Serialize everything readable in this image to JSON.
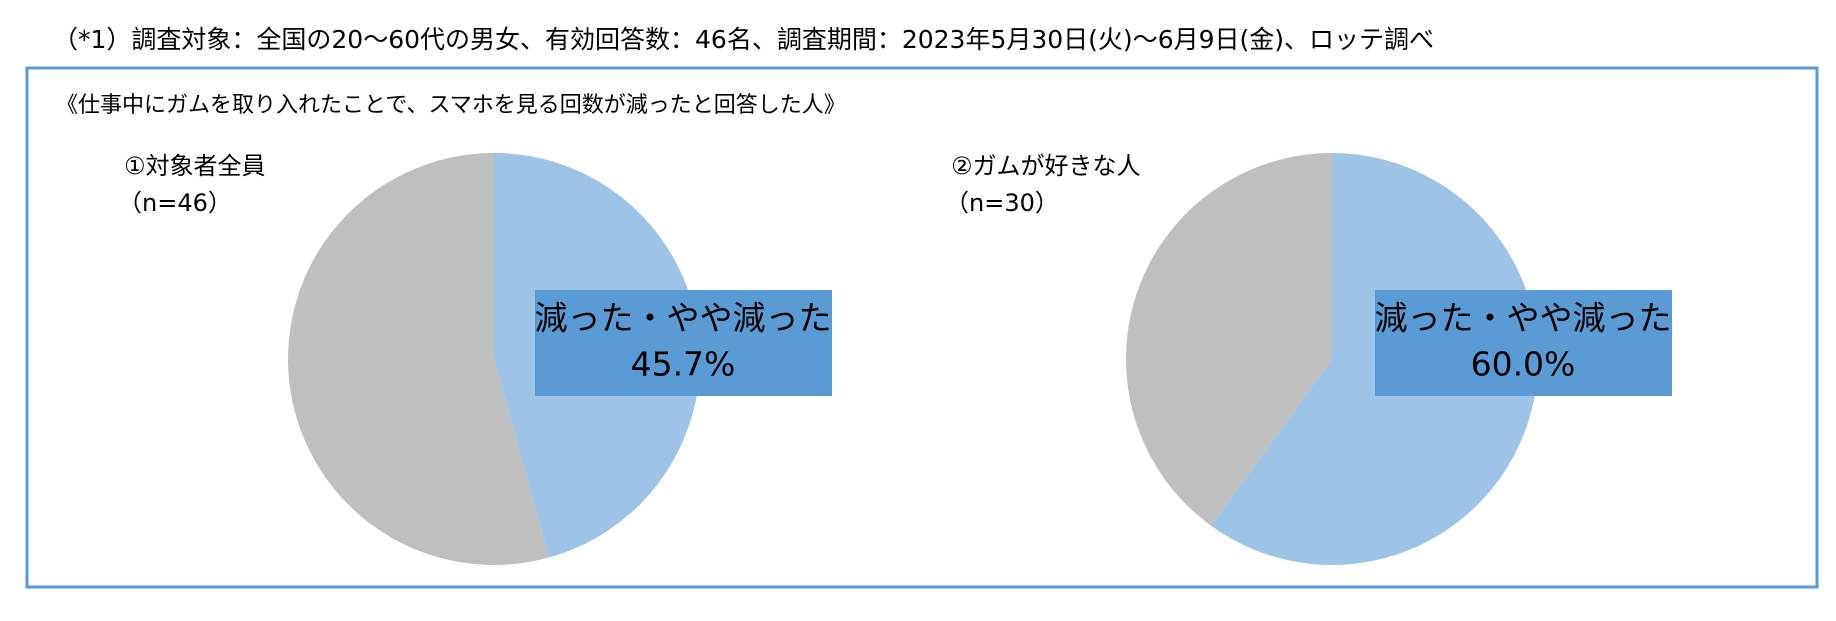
{
  "note": "（*1）調査対象：全国の20～60代の男女、有効回答数：46名、調査期間：2023年5月30日(火)～6月9日(金)、ロッテ調べ",
  "heading": "《仕事中にガムを取り入れたことで、スマホを見る回数が減ったと回答した人》",
  "chart_data": [
    {
      "type": "pie",
      "title": "①対象者全員",
      "subtitle": "（n=46）",
      "categories": [
        "減った・やや減った",
        null
      ],
      "values": [
        45.7,
        54.3
      ],
      "value_labels": [
        "45.7%",
        null
      ],
      "colors": [
        "#9dc3e6",
        "#bfbfbf"
      ]
    },
    {
      "type": "pie",
      "title": "②ガムが好きな人",
      "subtitle": "（n=30）",
      "categories": [
        "減った・やや減った",
        null
      ],
      "values": [
        60.0,
        40.0
      ],
      "value_labels": [
        "60.0%",
        null
      ],
      "colors": [
        "#9dc3e6",
        "#bfbfbf"
      ]
    }
  ]
}
